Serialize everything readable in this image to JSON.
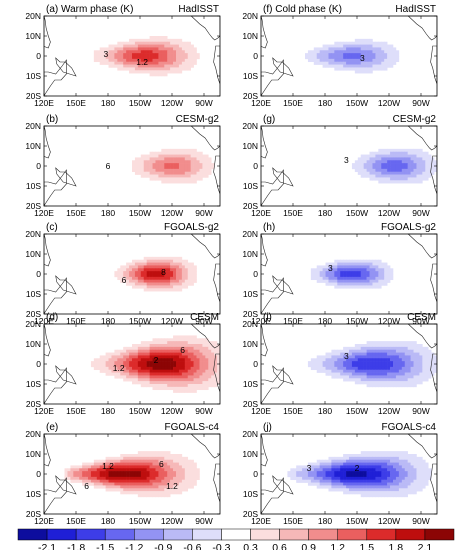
{
  "chart_data": {
    "type": "heatmap",
    "columns": [
      {
        "header": "Warm phase (K)",
        "shade": "warm"
      },
      {
        "header": "Cold phase (K)",
        "shade": "cold"
      }
    ],
    "panels": [
      {
        "tag": "(a)",
        "header": "Warm phase (K)",
        "source": "HadISST",
        "col": 0,
        "row": 0,
        "sign": 1,
        "peak": 1.6,
        "center_lon": 215,
        "width": 1.0,
        "lat_spread": 1.0,
        "labels": [
          {
            "lon": 178,
            "lat": 1,
            "text": "3"
          },
          {
            "lon": 212,
            "lat": -3,
            "text": "1.2"
          }
        ]
      },
      {
        "tag": "(f)",
        "header": "Cold phase (K)",
        "source": "HadISST",
        "col": 1,
        "row": 0,
        "sign": -1,
        "peak": 1.2,
        "center_lon": 205,
        "width": 1.0,
        "lat_spread": 1.0,
        "labels": [
          {
            "lon": 215,
            "lat": -1,
            "text": "3"
          }
        ]
      },
      {
        "tag": "(b)",
        "header": "",
        "source": "CESM-g2",
        "col": 0,
        "row": 1,
        "sign": 1,
        "peak": 1.2,
        "center_lon": 240,
        "width": 0.85,
        "lat_spread": 0.8,
        "labels": [
          {
            "lon": 180,
            "lat": 0,
            "text": "6"
          }
        ]
      },
      {
        "tag": "(g)",
        "header": "",
        "source": "CESM-g2",
        "col": 1,
        "row": 1,
        "sign": -1,
        "peak": 1.3,
        "center_lon": 245,
        "width": 0.85,
        "lat_spread": 0.8,
        "labels": [
          {
            "lon": 200,
            "lat": 3,
            "text": "3"
          }
        ]
      },
      {
        "tag": "(c)",
        "header": "",
        "source": "FGOALS-g2",
        "col": 0,
        "row": 2,
        "sign": 1,
        "peak": 1.9,
        "center_lon": 225,
        "width": 0.75,
        "lat_spread": 0.7,
        "labels": [
          {
            "lon": 195,
            "lat": -3,
            "text": "6"
          },
          {
            "lon": 232,
            "lat": 1,
            "text": "8"
          }
        ]
      },
      {
        "tag": "(h)",
        "header": "",
        "source": "FGOALS-g2",
        "col": 1,
        "row": 2,
        "sign": -1,
        "peak": 1.6,
        "center_lon": 205,
        "width": 0.8,
        "lat_spread": 0.75,
        "labels": [
          {
            "lon": 185,
            "lat": 3,
            "text": "3"
          }
        ]
      },
      {
        "tag": "(d)",
        "header": "",
        "source": "CESM",
        "col": 0,
        "row": 3,
        "sign": 1,
        "peak": 2.2,
        "center_lon": 230,
        "width": 1.2,
        "lat_spread": 1.4,
        "labels": [
          {
            "lon": 190,
            "lat": -2,
            "text": "1.2"
          },
          {
            "lon": 250,
            "lat": 7,
            "text": "6"
          },
          {
            "lon": 225,
            "lat": 2,
            "text": "2"
          }
        ]
      },
      {
        "tag": "(i)",
        "header": "",
        "source": "CESM",
        "col": 1,
        "row": 3,
        "sign": -1,
        "peak": 1.7,
        "center_lon": 225,
        "width": 1.2,
        "lat_spread": 1.3,
        "labels": [
          {
            "lon": 200,
            "lat": 4,
            "text": "3"
          }
        ]
      },
      {
        "tag": "(e)",
        "header": "",
        "source": "FGOALS-c4",
        "col": 0,
        "row": 4,
        "sign": 1,
        "peak": 2.2,
        "center_lon": 195,
        "width": 1.3,
        "lat_spread": 1.4,
        "labels": [
          {
            "lon": 180,
            "lat": 4,
            "text": "1.2"
          },
          {
            "lon": 230,
            "lat": 5,
            "text": "6"
          },
          {
            "lon": 240,
            "lat": -6,
            "text": "1.2"
          },
          {
            "lon": 160,
            "lat": -6,
            "text": "6"
          }
        ]
      },
      {
        "tag": "(j)",
        "header": "",
        "source": "FGOALS-c4",
        "col": 1,
        "row": 4,
        "sign": -1,
        "peak": 2.1,
        "center_lon": 210,
        "width": 1.3,
        "lat_spread": 1.3,
        "labels": [
          {
            "lon": 165,
            "lat": 3,
            "text": "3"
          },
          {
            "lon": 210,
            "lat": 3,
            "text": "2"
          }
        ]
      }
    ],
    "lat_ticks": [
      "20N",
      "10N",
      "0",
      "10S",
      "20S"
    ],
    "lat_values": [
      20,
      10,
      0,
      -10,
      -20
    ],
    "lon_ticks": [
      "120E",
      "150E",
      "180",
      "150W",
      "120W",
      "90W"
    ],
    "lon_values": [
      120,
      150,
      180,
      210,
      240,
      270
    ],
    "xlim": [
      120,
      285
    ],
    "ylim": [
      -20,
      20
    ],
    "colorbar": {
      "ticks": [
        "-2.1",
        "-1.8",
        "-1.5",
        "-1.2",
        "-0.9",
        "-0.6",
        "-0.3",
        "0.3",
        "0.6",
        "0.9",
        "1.2",
        "1.5",
        "1.8",
        "2.1"
      ],
      "levels": [
        -2.1,
        -1.8,
        -1.5,
        -1.2,
        -0.9,
        -0.6,
        -0.3,
        0.3,
        0.6,
        0.9,
        1.2,
        1.5,
        1.8,
        2.1
      ],
      "colors": [
        "#0d0d9e",
        "#1f1fd6",
        "#3d3de8",
        "#6767f0",
        "#9393f3",
        "#babaf6",
        "#dedefa",
        "#ffffff",
        "#fbdede",
        "#f6b8b8",
        "#f18d8d",
        "#ea5f5f",
        "#dc2b2b",
        "#be0e0e",
        "#8c0505"
      ]
    }
  }
}
